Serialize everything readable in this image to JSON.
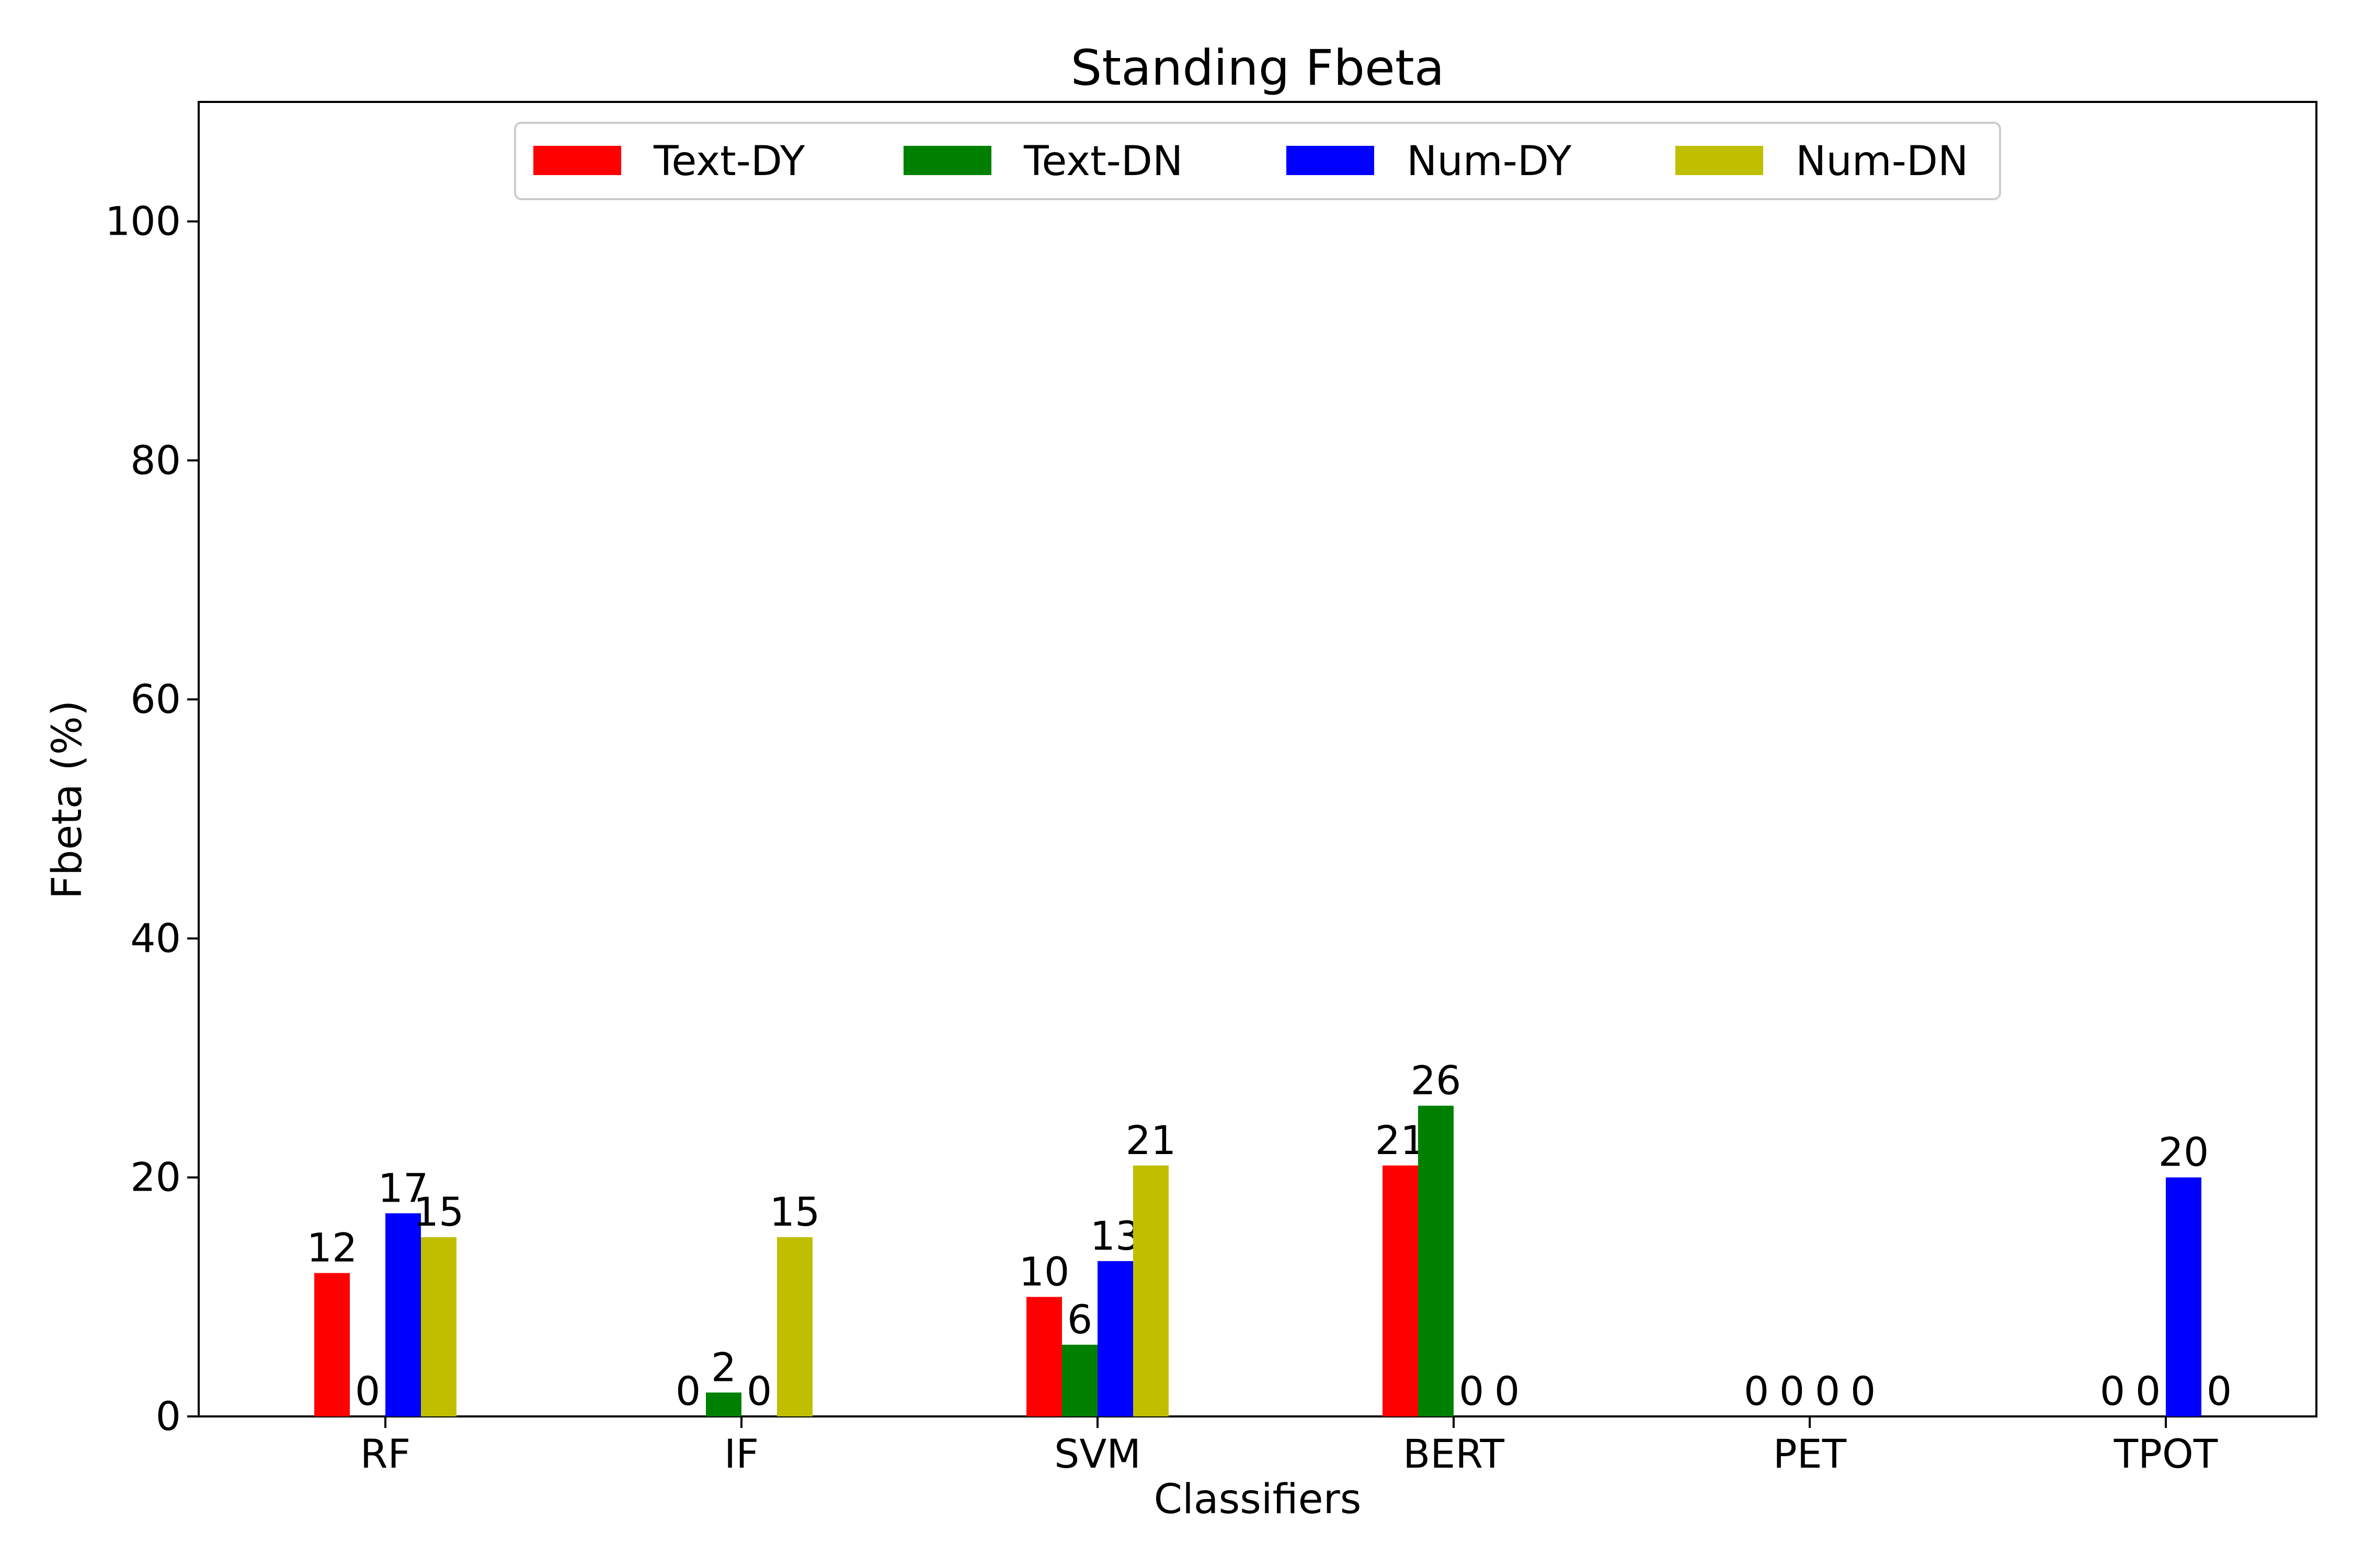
{
  "chart_data": {
    "type": "bar",
    "title": "Standing Fbeta",
    "xlabel": "Classifiers",
    "ylabel": "Fbeta (%)",
    "categories": [
      "RF",
      "IF",
      "SVM",
      "BERT",
      "PET",
      "TPOT"
    ],
    "series": [
      {
        "name": "Text-DY",
        "color": "#ff0000",
        "values": [
          12,
          0,
          10,
          21,
          0,
          0
        ]
      },
      {
        "name": "Text-DN",
        "color": "#008000",
        "values": [
          0,
          2,
          6,
          26,
          0,
          0
        ]
      },
      {
        "name": "Num-DY",
        "color": "#0000ff",
        "values": [
          17,
          0,
          13,
          0,
          0,
          20
        ]
      },
      {
        "name": "Num-DN",
        "color": "#bfbf00",
        "values": [
          15,
          15,
          21,
          0,
          0,
          0
        ]
      }
    ],
    "data_labels": [
      [
        "12",
        "0",
        "17",
        "15"
      ],
      [
        "0",
        "2",
        "0",
        "15"
      ],
      [
        "10",
        "6",
        "13",
        "21"
      ],
      [
        "21",
        "26",
        "0",
        "0"
      ],
      [
        "0",
        "0",
        "0",
        "0"
      ],
      [
        "0",
        "0",
        "20",
        "0"
      ]
    ],
    "ylim": [
      0,
      110
    ],
    "yticks": [
      "0",
      "20",
      "40",
      "60",
      "80",
      "100"
    ],
    "grid": false,
    "legend_position": "top-center"
  }
}
